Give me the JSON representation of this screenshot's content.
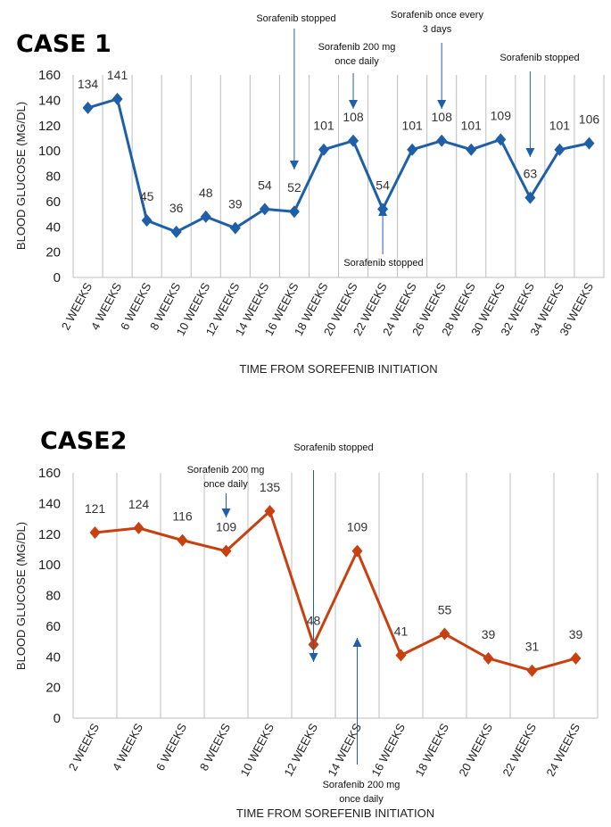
{
  "chart_data": [
    {
      "type": "line",
      "title": "CASE 1",
      "xlabel": "TIME FROM SOREFENIB INITIATION",
      "ylabel": "BLOOD GLUCOSE (MG/DL)",
      "ylim": [
        0,
        160
      ],
      "yticks": [
        0,
        20,
        40,
        60,
        80,
        100,
        120,
        140,
        160
      ],
      "grid": "vertical",
      "color": "#1f5fa8",
      "categories": [
        "2 WEEKS",
        "4 WEEKS",
        "6 WEEKS",
        "8 WEEKS",
        "10 WEEKS",
        "12 WEEKS",
        "14 WEEKS",
        "16 WEEKS",
        "18 WEEKS",
        "20 WEEKS",
        "22 WEEKS",
        "24 WEEKS",
        "26 WEEKS",
        "28 WEEKS",
        "30 WEEKS",
        "32 WEEKS",
        "34 WEEKS",
        "36 WEEKS"
      ],
      "values": [
        134,
        141,
        45,
        36,
        48,
        39,
        54,
        52,
        101,
        108,
        54,
        101,
        108,
        101,
        109,
        63,
        101,
        106
      ],
      "annotations": [
        {
          "lines": [
            "Sorafenib stopped"
          ],
          "category": "16 WEEKS",
          "direction": "down"
        },
        {
          "lines": [
            "Sorafenib 200 mg",
            "once daily"
          ],
          "category": "20 WEEKS",
          "direction": "down"
        },
        {
          "lines": [
            "Sorafenib stopped"
          ],
          "category": "22 WEEKS",
          "direction": "up"
        },
        {
          "lines": [
            "Sorafenib once every",
            "3 days"
          ],
          "category": "26 WEEKS",
          "direction": "down"
        },
        {
          "lines": [
            "Sorafenib stopped"
          ],
          "category": "32 WEEKS",
          "direction": "down"
        }
      ]
    },
    {
      "type": "line",
      "title": "CASE2",
      "xlabel": "TIME FROM SOREFENIB INITIATION",
      "ylabel": "BLOOD GLUCOSE (MG/DL)",
      "ylim": [
        0,
        160
      ],
      "yticks": [
        0,
        20,
        40,
        60,
        80,
        100,
        120,
        140,
        160
      ],
      "grid": "vertical",
      "color": "#c8400f",
      "categories": [
        "2 WEEKS",
        "4 WEEKS",
        "6 WEEKS",
        "8 WEEKS",
        "10 WEEKS",
        "12 WEEKS",
        "14 WEEKS",
        "16 WEEKS",
        "18 WEEKS",
        "20 WEEKS",
        "22 WEEKS",
        "24 WEEKS"
      ],
      "values": [
        121,
        124,
        116,
        109,
        135,
        48,
        109,
        41,
        55,
        39,
        31,
        39
      ],
      "annotations": [
        {
          "lines": [
            "Sorafenib 200 mg",
            "once daily"
          ],
          "category": "8 WEEKS",
          "direction": "down"
        },
        {
          "lines": [
            "Sorafenib stopped"
          ],
          "category": "12 WEEKS",
          "direction": "down"
        },
        {
          "lines": [
            "Sorafenib 200 mg",
            "once daily"
          ],
          "category": "14 WEEKS",
          "direction": "up"
        }
      ]
    }
  ]
}
